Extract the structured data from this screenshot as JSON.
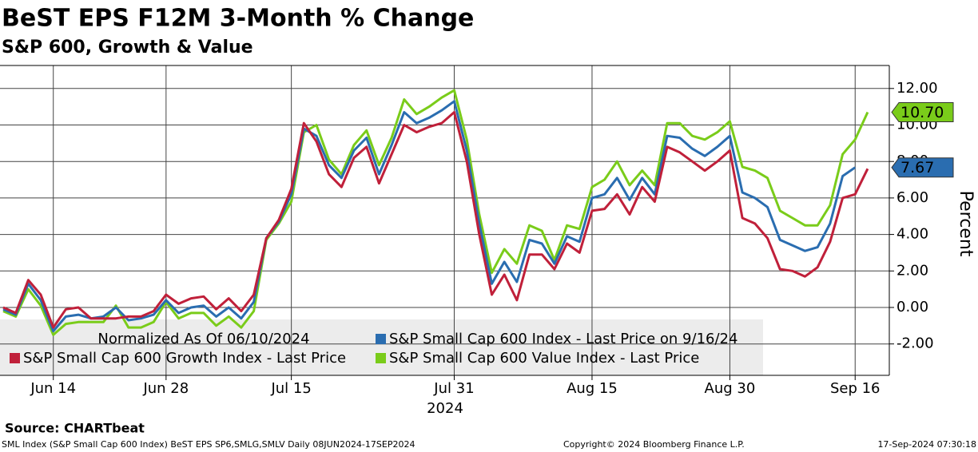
{
  "chart_data": {
    "type": "line",
    "title": "BeST EPS F12M 3-Month % Change",
    "subtitle": "S&P 600, Growth & Value",
    "y_axis_label": "Percent",
    "x_year_label": "2024",
    "legend_note": "Normalized As Of 06/10/2024",
    "source": "Source: CHARTbeat",
    "footer_left": "SML Index (S&P Small Cap 600 Index) BeST EPS SP6,SMLG,SMLV  Daily 08JUN2024-17SEP2024",
    "footer_center": "Copyright© 2024 Bloomberg Finance L.P.",
    "footer_right": "17-Sep-2024 07:30:18",
    "grid": true,
    "categories": [
      null,
      null,
      null,
      null,
      "Jun 14",
      null,
      null,
      null,
      null,
      null,
      null,
      null,
      null,
      "Jun 28",
      null,
      null,
      null,
      null,
      null,
      null,
      null,
      null,
      null,
      "Jul 15",
      null,
      null,
      null,
      null,
      null,
      null,
      null,
      null,
      null,
      null,
      null,
      null,
      "Jul 31",
      null,
      null,
      null,
      null,
      null,
      null,
      null,
      null,
      null,
      null,
      "Aug 15",
      null,
      null,
      null,
      null,
      null,
      null,
      null,
      null,
      null,
      null,
      "Aug 30",
      null,
      null,
      null,
      null,
      null,
      null,
      null,
      null,
      null,
      "Sep 16",
      null
    ],
    "ylim": [
      -3.72,
      13.26
    ],
    "yticks": [
      {
        "value": -2,
        "label": "-2.00"
      },
      {
        "value": 0,
        "label": "0.00"
      },
      {
        "value": 2,
        "label": "2.00"
      },
      {
        "value": 4,
        "label": "4.00"
      },
      {
        "value": 6,
        "label": "6.00"
      },
      {
        "value": 8,
        "label": "8.00"
      },
      {
        "value": 10,
        "label": "10.00"
      },
      {
        "value": 12,
        "label": "12.00"
      }
    ],
    "series": [
      {
        "name": "S&P Small Cap 600 Index - Last Price on 9/16/24",
        "color": "#2a6db0",
        "label_text_color": "#ffffff",
        "values": [
          -0.1,
          -0.4,
          1.3,
          0.4,
          -1.3,
          -0.5,
          -0.4,
          -0.6,
          -0.5,
          0.0,
          -0.7,
          -0.6,
          -0.4,
          0.4,
          -0.3,
          0.0,
          0.1,
          -0.5,
          0.0,
          -0.6,
          0.3,
          3.8,
          4.7,
          6.2,
          9.8,
          9.4,
          7.8,
          7.1,
          8.6,
          9.3,
          7.3,
          8.9,
          10.7,
          10.1,
          10.4,
          10.8,
          11.3,
          8.6,
          4.6,
          1.3,
          2.5,
          1.4,
          3.7,
          3.5,
          2.4,
          3.9,
          3.6,
          6.0,
          6.2,
          7.1,
          5.9,
          7.1,
          6.2,
          9.4,
          9.3,
          8.7,
          8.3,
          8.8,
          9.4,
          6.3,
          6.0,
          5.5,
          3.7,
          3.4,
          3.1,
          3.3,
          4.6,
          7.2,
          7.67,
          null
        ],
        "value_labels": [
          null,
          null,
          null,
          null,
          null,
          null,
          null,
          null,
          null,
          null,
          null,
          null,
          null,
          null,
          null,
          null,
          null,
          null,
          null,
          null,
          null,
          null,
          null,
          null,
          null,
          null,
          null,
          null,
          null,
          null,
          null,
          null,
          null,
          null,
          null,
          null,
          null,
          null,
          null,
          null,
          null,
          null,
          null,
          null,
          null,
          null,
          null,
          null,
          null,
          null,
          null,
          null,
          null,
          null,
          null,
          null,
          null,
          null,
          null,
          null,
          null,
          null,
          null,
          null,
          null,
          null,
          null,
          null,
          "7.67",
          null
        ]
      },
      {
        "name": "S&P Small Cap 600 Growth Index - Last Price",
        "color": "#c0203a",
        "values": [
          0,
          -0.3,
          1.5,
          0.7,
          -1.1,
          -0.1,
          0.0,
          -0.6,
          -0.6,
          -0.6,
          -0.5,
          -0.5,
          -0.2,
          0.7,
          0.2,
          0.5,
          0.6,
          -0.1,
          0.5,
          -0.2,
          0.7,
          3.8,
          4.8,
          6.5,
          10.1,
          9.1,
          7.3,
          6.6,
          8.2,
          8.8,
          6.8,
          8.4,
          10.0,
          9.6,
          9.9,
          10.1,
          10.7,
          8.0,
          4.0,
          0.7,
          1.8,
          0.4,
          2.9,
          2.9,
          2.1,
          3.5,
          3.0,
          5.3,
          5.4,
          6.2,
          5.1,
          6.6,
          5.8,
          8.8,
          8.5,
          8.0,
          7.5,
          8.0,
          8.6,
          4.9,
          4.6,
          3.8,
          2.1,
          2.0,
          1.7,
          2.2,
          3.6,
          6.0,
          6.2,
          7.6
        ]
      },
      {
        "name": "S&P Small Cap 600 Value Index - Last Price",
        "color": "#7acc1a",
        "label_text_color": "#000000",
        "values": [
          -0.2,
          -0.5,
          1.0,
          0.1,
          -1.5,
          -0.9,
          -0.8,
          -0.8,
          -0.8,
          0.1,
          -1.1,
          -1.1,
          -0.8,
          0.3,
          -0.6,
          -0.3,
          -0.3,
          -1.0,
          -0.5,
          -1.1,
          -0.2,
          3.7,
          4.6,
          5.8,
          9.6,
          10.0,
          8.1,
          7.3,
          8.9,
          9.7,
          7.8,
          9.3,
          11.4,
          10.6,
          11.0,
          11.5,
          11.9,
          9.2,
          5.1,
          1.9,
          3.2,
          2.4,
          4.5,
          4.2,
          2.6,
          4.5,
          4.3,
          6.6,
          7.0,
          8.0,
          6.7,
          7.5,
          6.7,
          10.1,
          10.1,
          9.4,
          9.2,
          9.6,
          10.2,
          7.7,
          7.5,
          7.1,
          5.3,
          4.9,
          4.5,
          4.5,
          5.6,
          8.4,
          9.2,
          10.7
        ],
        "value_labels": [
          null,
          null,
          null,
          null,
          null,
          null,
          null,
          null,
          null,
          null,
          null,
          null,
          null,
          null,
          null,
          null,
          null,
          null,
          null,
          null,
          null,
          null,
          null,
          null,
          null,
          null,
          null,
          null,
          null,
          null,
          null,
          null,
          null,
          null,
          null,
          null,
          null,
          null,
          null,
          null,
          null,
          null,
          null,
          null,
          null,
          null,
          null,
          null,
          null,
          null,
          null,
          null,
          null,
          null,
          null,
          null,
          null,
          null,
          null,
          null,
          null,
          null,
          null,
          null,
          null,
          null,
          null,
          null,
          null,
          "10.70"
        ]
      }
    ]
  }
}
